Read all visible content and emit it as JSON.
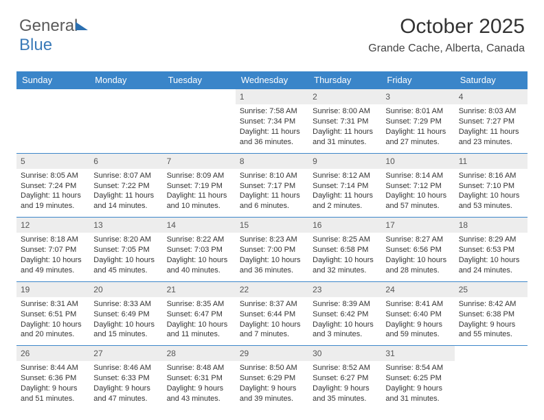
{
  "brand": {
    "part1": "General",
    "part2": "Blue"
  },
  "title": "October 2025",
  "location": "Grande Cache, Alberta, Canada",
  "colors": {
    "header_bg": "#3a85c9",
    "daynum_bg": "#ededed",
    "border": "#3a85c9",
    "text": "#333333",
    "brand_gray": "#5a5a5a",
    "brand_blue": "#3a7ab8"
  },
  "day_names": [
    "Sunday",
    "Monday",
    "Tuesday",
    "Wednesday",
    "Thursday",
    "Friday",
    "Saturday"
  ],
  "weeks": [
    [
      null,
      null,
      null,
      {
        "n": "1",
        "sr": "7:58 AM",
        "ss": "7:34 PM",
        "dl": "11 hours and 36 minutes."
      },
      {
        "n": "2",
        "sr": "8:00 AM",
        "ss": "7:31 PM",
        "dl": "11 hours and 31 minutes."
      },
      {
        "n": "3",
        "sr": "8:01 AM",
        "ss": "7:29 PM",
        "dl": "11 hours and 27 minutes."
      },
      {
        "n": "4",
        "sr": "8:03 AM",
        "ss": "7:27 PM",
        "dl": "11 hours and 23 minutes."
      }
    ],
    [
      {
        "n": "5",
        "sr": "8:05 AM",
        "ss": "7:24 PM",
        "dl": "11 hours and 19 minutes."
      },
      {
        "n": "6",
        "sr": "8:07 AM",
        "ss": "7:22 PM",
        "dl": "11 hours and 14 minutes."
      },
      {
        "n": "7",
        "sr": "8:09 AM",
        "ss": "7:19 PM",
        "dl": "11 hours and 10 minutes."
      },
      {
        "n": "8",
        "sr": "8:10 AM",
        "ss": "7:17 PM",
        "dl": "11 hours and 6 minutes."
      },
      {
        "n": "9",
        "sr": "8:12 AM",
        "ss": "7:14 PM",
        "dl": "11 hours and 2 minutes."
      },
      {
        "n": "10",
        "sr": "8:14 AM",
        "ss": "7:12 PM",
        "dl": "10 hours and 57 minutes."
      },
      {
        "n": "11",
        "sr": "8:16 AM",
        "ss": "7:10 PM",
        "dl": "10 hours and 53 minutes."
      }
    ],
    [
      {
        "n": "12",
        "sr": "8:18 AM",
        "ss": "7:07 PM",
        "dl": "10 hours and 49 minutes."
      },
      {
        "n": "13",
        "sr": "8:20 AM",
        "ss": "7:05 PM",
        "dl": "10 hours and 45 minutes."
      },
      {
        "n": "14",
        "sr": "8:22 AM",
        "ss": "7:03 PM",
        "dl": "10 hours and 40 minutes."
      },
      {
        "n": "15",
        "sr": "8:23 AM",
        "ss": "7:00 PM",
        "dl": "10 hours and 36 minutes."
      },
      {
        "n": "16",
        "sr": "8:25 AM",
        "ss": "6:58 PM",
        "dl": "10 hours and 32 minutes."
      },
      {
        "n": "17",
        "sr": "8:27 AM",
        "ss": "6:56 PM",
        "dl": "10 hours and 28 minutes."
      },
      {
        "n": "18",
        "sr": "8:29 AM",
        "ss": "6:53 PM",
        "dl": "10 hours and 24 minutes."
      }
    ],
    [
      {
        "n": "19",
        "sr": "8:31 AM",
        "ss": "6:51 PM",
        "dl": "10 hours and 20 minutes."
      },
      {
        "n": "20",
        "sr": "8:33 AM",
        "ss": "6:49 PM",
        "dl": "10 hours and 15 minutes."
      },
      {
        "n": "21",
        "sr": "8:35 AM",
        "ss": "6:47 PM",
        "dl": "10 hours and 11 minutes."
      },
      {
        "n": "22",
        "sr": "8:37 AM",
        "ss": "6:44 PM",
        "dl": "10 hours and 7 minutes."
      },
      {
        "n": "23",
        "sr": "8:39 AM",
        "ss": "6:42 PM",
        "dl": "10 hours and 3 minutes."
      },
      {
        "n": "24",
        "sr": "8:41 AM",
        "ss": "6:40 PM",
        "dl": "9 hours and 59 minutes."
      },
      {
        "n": "25",
        "sr": "8:42 AM",
        "ss": "6:38 PM",
        "dl": "9 hours and 55 minutes."
      }
    ],
    [
      {
        "n": "26",
        "sr": "8:44 AM",
        "ss": "6:36 PM",
        "dl": "9 hours and 51 minutes."
      },
      {
        "n": "27",
        "sr": "8:46 AM",
        "ss": "6:33 PM",
        "dl": "9 hours and 47 minutes."
      },
      {
        "n": "28",
        "sr": "8:48 AM",
        "ss": "6:31 PM",
        "dl": "9 hours and 43 minutes."
      },
      {
        "n": "29",
        "sr": "8:50 AM",
        "ss": "6:29 PM",
        "dl": "9 hours and 39 minutes."
      },
      {
        "n": "30",
        "sr": "8:52 AM",
        "ss": "6:27 PM",
        "dl": "9 hours and 35 minutes."
      },
      {
        "n": "31",
        "sr": "8:54 AM",
        "ss": "6:25 PM",
        "dl": "9 hours and 31 minutes."
      },
      null
    ]
  ],
  "labels": {
    "sunrise_prefix": "Sunrise: ",
    "sunset_prefix": "Sunset: ",
    "daylight_prefix": "Daylight: "
  }
}
